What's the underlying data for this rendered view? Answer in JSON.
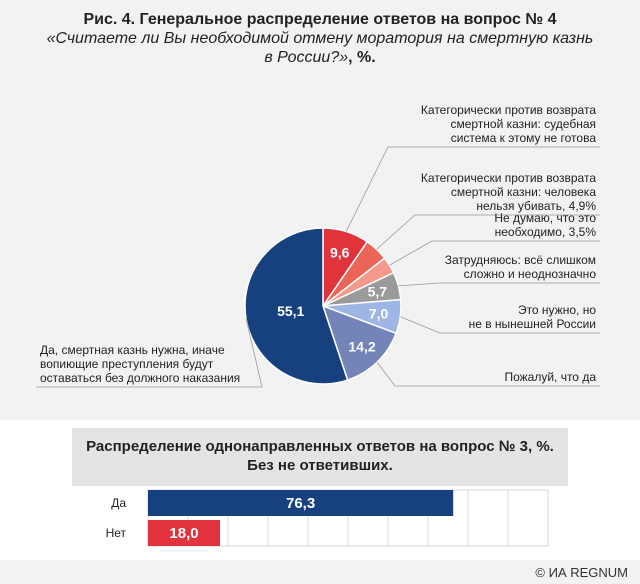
{
  "header": {
    "title": "Рис. 4. Генеральное распределение ответов на вопрос № 4",
    "subtitle_line1": "«Считаете ли Вы необходимой отмену моратория на смертную казнь",
    "subtitle_line2": "в России?»",
    "subtitle_unit": ", %."
  },
  "chart_data": [
    {
      "type": "pie",
      "slices": [
        {
          "label": "Категорически против возврата смертной казни: судебная система к этому не готова",
          "label_lines": [
            "Категорически против возврата",
            "смертной казни: судебная",
            "система к этому не готова"
          ],
          "value": 9.6,
          "value_label": "9,6",
          "color": "#e0333c"
        },
        {
          "label": "Категорически против возврата смертной казни: человека нельзя убивать, 4,9%",
          "label_lines": [
            "Категорически против возврата",
            "смертной казни: человека",
            "нельзя убивать, 4,9%"
          ],
          "value": 4.9,
          "value_label": "",
          "color": "#ea6458"
        },
        {
          "label": "Не думаю, что это необходимо, 3,5%",
          "label_lines": [
            "Не думаю, что это",
            "необходимо, 3,5%"
          ],
          "value": 3.5,
          "value_label": "",
          "color": "#f2998a"
        },
        {
          "label": "Затрудняюсь: всё слишком сложно и неоднозначно",
          "label_lines": [
            "Затрудняюсь: всё слишком",
            "сложно и неоднозначно"
          ],
          "value": 5.7,
          "value_label": "5,7",
          "color": "#9a9a9a"
        },
        {
          "label": "Это нужно, но не в нынешней России",
          "label_lines": [
            "Это нужно, но",
            "не в нынешней России"
          ],
          "value": 7.0,
          "value_label": "7,0",
          "color": "#9db6e6"
        },
        {
          "label": "Пожалуй, что да",
          "label_lines": [
            "Пожалуй, что да"
          ],
          "value": 14.2,
          "value_label": "14,2",
          "color": "#7384b8"
        },
        {
          "label": "Да, смертная казнь нужна, иначе вопиющие преступления будут оставаться без должного наказания",
          "label_lines": [
            "Да, смертная казнь нужна, иначе",
            "вопиющие преступления будут",
            "оставаться без должного наказания"
          ],
          "value": 55.1,
          "value_label": "55,1",
          "color": "#17407f"
        }
      ]
    },
    {
      "type": "bar",
      "orientation": "horizontal",
      "title_line1": "Распределение однонаправленных ответов на вопрос № 3, %.",
      "title_line2": "Без не ответивших.",
      "categories": [
        "Да",
        "Нет"
      ],
      "values": [
        76.3,
        18.0
      ],
      "value_labels": [
        "76,3",
        "18,0"
      ],
      "colors": [
        "#17407f",
        "#e0333c"
      ],
      "xlim": [
        0,
        100
      ],
      "grid": true
    }
  ],
  "footer": {
    "source": "© ИА REGNUM"
  }
}
